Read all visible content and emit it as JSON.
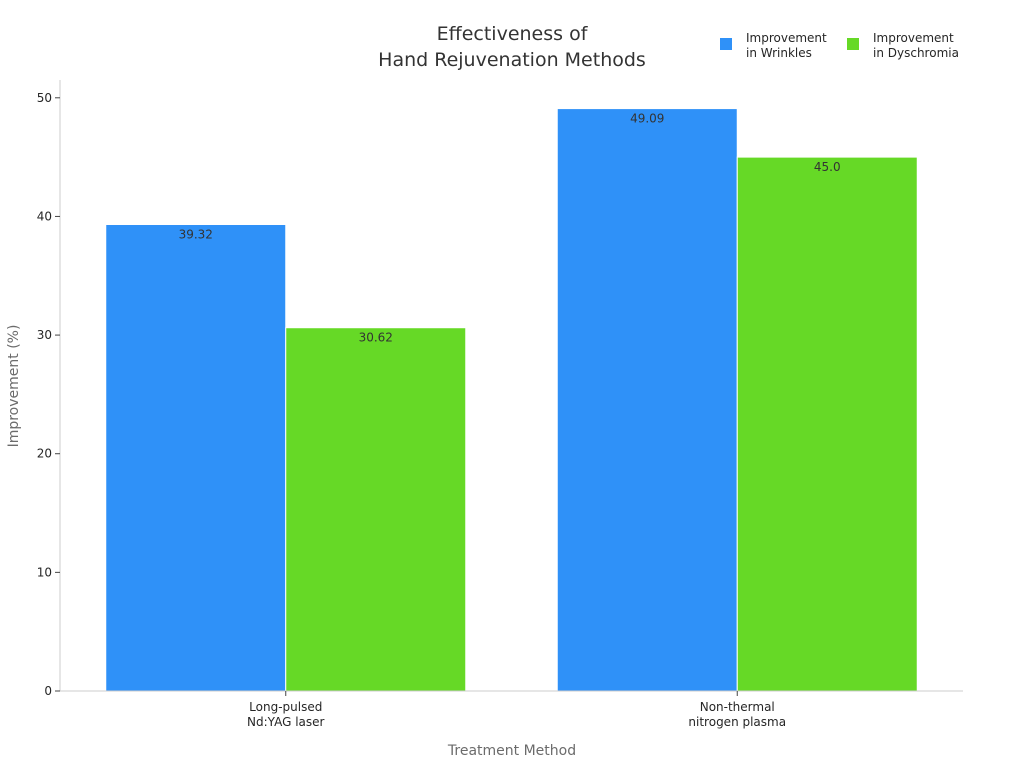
{
  "chart_data": {
    "type": "bar",
    "title": [
      "Effectiveness of",
      "Hand Rejuvenation Methods"
    ],
    "xlabel": "Treatment Method",
    "ylabel": "Improvement (%)",
    "categories": [
      [
        "Long-pulsed",
        "Nd:YAG laser"
      ],
      [
        "Non-thermal",
        "nitrogen plasma"
      ]
    ],
    "series": [
      {
        "name": [
          "Improvement",
          "in Wrinkles"
        ],
        "color": "#2f91f8",
        "values": [
          39.32,
          49.09
        ],
        "value_labels": [
          "39.32",
          "49.09"
        ]
      },
      {
        "name": [
          "Improvement",
          "in Dyschromia"
        ],
        "color": "#66d926",
        "values": [
          30.62,
          45.0
        ],
        "value_labels": [
          "30.62",
          "45.0"
        ]
      }
    ],
    "ylim": [
      0,
      51.5
    ],
    "yticks": [
      0,
      10,
      20,
      30,
      40,
      50
    ],
    "grid": false,
    "legend_position": "top-right"
  }
}
